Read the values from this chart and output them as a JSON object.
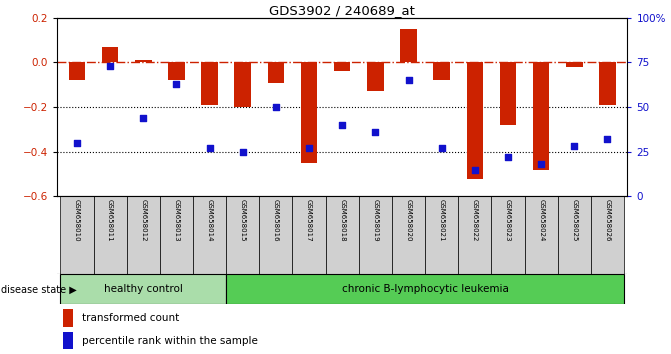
{
  "title": "GDS3902 / 240689_at",
  "samples": [
    "GSM658010",
    "GSM658011",
    "GSM658012",
    "GSM658013",
    "GSM658014",
    "GSM658015",
    "GSM658016",
    "GSM658017",
    "GSM658018",
    "GSM658019",
    "GSM658020",
    "GSM658021",
    "GSM658022",
    "GSM658023",
    "GSM658024",
    "GSM658025",
    "GSM658026"
  ],
  "bar_values": [
    -0.08,
    0.07,
    0.01,
    -0.08,
    -0.19,
    -0.2,
    -0.09,
    -0.45,
    -0.04,
    -0.13,
    0.15,
    -0.08,
    -0.52,
    -0.28,
    -0.48,
    -0.02,
    -0.19
  ],
  "dot_values": [
    30,
    73,
    44,
    63,
    27,
    25,
    50,
    27,
    40,
    36,
    65,
    27,
    15,
    22,
    18,
    28,
    32
  ],
  "group_labels": [
    "healthy control",
    "chronic B-lymphocytic leukemia"
  ],
  "n_group1": 5,
  "bar_color": "#cc2200",
  "dot_color": "#1111cc",
  "ref_line_color": "#cc2200",
  "ylim_left": [
    -0.6,
    0.2
  ],
  "ylim_right": [
    0,
    100
  ],
  "yticks_left": [
    -0.6,
    -0.4,
    -0.2,
    0.0,
    0.2
  ],
  "yticks_right": [
    0,
    25,
    50,
    75,
    100
  ],
  "ytick_labels_right": [
    "0",
    "25",
    "50",
    "75",
    "100%"
  ],
  "dotted_lines": [
    -0.2,
    -0.4
  ],
  "label_bg": "#d0d0d0",
  "group1_color": "#aaddaa",
  "group2_color": "#55cc55",
  "disease_state_label": "disease state",
  "legend_bar": "transformed count",
  "legend_dot": "percentile rank within the sample",
  "bar_width": 0.5,
  "dot_size": 25
}
